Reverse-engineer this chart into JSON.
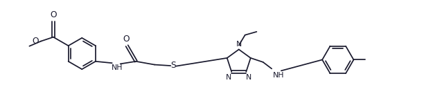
{
  "bg_color": "#ffffff",
  "line_color": "#1a1a2e",
  "line_width": 1.25,
  "font_size": 7.8,
  "figsize": [
    6.12,
    1.49
  ],
  "dpi": 100,
  "xlim": [
    -0.3,
    9.5
  ],
  "ylim": [
    0.0,
    2.5
  ]
}
